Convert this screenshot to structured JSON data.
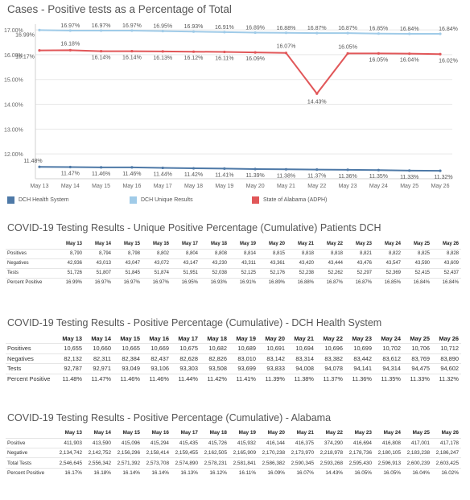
{
  "chart_data": {
    "type": "line",
    "title": "Cases - Positive tests as a Percentage of Total",
    "categories": [
      "May 13",
      "May 14",
      "May 15",
      "May 16",
      "May 17",
      "May 18",
      "May 19",
      "May 20",
      "May 21",
      "May 22",
      "May 23",
      "May 24",
      "May 25",
      "May 26"
    ],
    "y_ticks": [
      "17.00%",
      "16.00%",
      "15.00%",
      "14.00%",
      "13.00%",
      "12.00%"
    ],
    "ylim": [
      11.0,
      17.1
    ],
    "grid": "horizontal",
    "legend_position": "bottom-left",
    "series": [
      {
        "name": "DCH Health System",
        "color": "#4e79a7",
        "values": [
          11.48,
          11.47,
          11.46,
          11.46,
          11.44,
          11.42,
          11.41,
          11.39,
          11.38,
          11.37,
          11.36,
          11.35,
          11.33,
          11.32
        ],
        "labels": [
          "11.48%",
          "11.47%",
          "11.46%",
          "11.46%",
          "11.44%",
          "11.42%",
          "11.41%",
          "11.39%",
          "11.38%",
          "11.37%",
          "11.36%",
          "11.35%",
          "11.33%",
          "11.32%"
        ]
      },
      {
        "name": "DCH Unique Results",
        "color": "#a0cbe8",
        "values": [
          16.99,
          16.97,
          16.97,
          16.97,
          16.95,
          16.93,
          16.91,
          16.89,
          16.88,
          16.87,
          16.87,
          16.85,
          16.84,
          16.84
        ],
        "labels": [
          "16.99%",
          "16.97%",
          "16.97%",
          "16.97%",
          "16.95%",
          "16.93%",
          "16.91%",
          "16.89%",
          "16.88%",
          "16.87%",
          "16.87%",
          "16.85%",
          "16.84%",
          "16.84%"
        ]
      },
      {
        "name": "State of Alabama (ADPH)",
        "color": "#e15759",
        "values": [
          16.17,
          16.18,
          16.14,
          16.14,
          16.13,
          16.12,
          16.11,
          16.09,
          16.07,
          14.43,
          16.05,
          16.05,
          16.04,
          16.02
        ],
        "labels": [
          "16.17%",
          "16.18%",
          "16.14%",
          "16.14%",
          "16.13%",
          "16.12%",
          "16.11%",
          "16.09%",
          "16.07%",
          "14.43%",
          "16.05%",
          "16.05%",
          "16.04%",
          "16.02%"
        ]
      }
    ]
  },
  "tables": [
    {
      "title": "COVID-19 Testing Results - Unique Positive Percentage (Cumulative) Patients DCH",
      "columns": [
        "May 13",
        "May 14",
        "May 15",
        "May 16",
        "May 17",
        "May 18",
        "May 19",
        "May 20",
        "May 21",
        "May 22",
        "May 23",
        "May 24",
        "May 25",
        "May 26"
      ],
      "rows": [
        {
          "label": "Positives",
          "cells": [
            "8,790",
            "8,794",
            "8,798",
            "8,802",
            "8,804",
            "8,808",
            "8,814",
            "8,815",
            "8,818",
            "8,818",
            "8,821",
            "8,822",
            "8,825",
            "8,828"
          ]
        },
        {
          "label": "Negatives",
          "cells": [
            "42,936",
            "43,013",
            "43,047",
            "43,072",
            "43,147",
            "43,230",
            "43,311",
            "43,361",
            "43,420",
            "43,444",
            "43,476",
            "43,547",
            "43,590",
            "43,609"
          ]
        },
        {
          "label": "Tests",
          "cells": [
            "51,726",
            "51,807",
            "51,845",
            "51,874",
            "51,951",
            "52,038",
            "52,125",
            "52,176",
            "52,238",
            "52,262",
            "52,297",
            "52,369",
            "52,415",
            "52,437"
          ]
        },
        {
          "label": "Percent Positive",
          "cells": [
            "16.99%",
            "16.97%",
            "16.97%",
            "16.97%",
            "16.95%",
            "16.93%",
            "16.91%",
            "16.89%",
            "16.88%",
            "16.87%",
            "16.87%",
            "16.85%",
            "16.84%",
            "16.84%"
          ]
        }
      ]
    },
    {
      "title": "COVID-19 Testing Results - Positive Percentage (Cumulative) - DCH Health System",
      "columns": [
        "May 13",
        "May 14",
        "May 15",
        "May 16",
        "May 17",
        "May 18",
        "May 19",
        "May 20",
        "May 21",
        "May 22",
        "May 23",
        "May 24",
        "May 25",
        "May 26"
      ],
      "rows": [
        {
          "label": "Positives",
          "cells": [
            "10,655",
            "10,660",
            "10,665",
            "10,669",
            "10,675",
            "10,682",
            "10,689",
            "10,691",
            "10,694",
            "10,696",
            "10,699",
            "10,702",
            "10,706",
            "10,712"
          ]
        },
        {
          "label": "Negatives",
          "cells": [
            "82,132",
            "82,311",
            "82,384",
            "82,437",
            "82,628",
            "82,826",
            "83,010",
            "83,142",
            "83,314",
            "83,382",
            "83,442",
            "83,612",
            "83,769",
            "83,890"
          ]
        },
        {
          "label": "Tests",
          "cells": [
            "92,787",
            "92,971",
            "93,049",
            "93,106",
            "93,303",
            "93,508",
            "93,699",
            "93,833",
            "94,008",
            "94,078",
            "94,141",
            "94,314",
            "94,475",
            "94,602"
          ]
        },
        {
          "label": "Percent Positive",
          "cells": [
            "11.48%",
            "11.47%",
            "11.46%",
            "11.46%",
            "11.44%",
            "11.42%",
            "11.41%",
            "11.39%",
            "11.38%",
            "11.37%",
            "11.36%",
            "11.35%",
            "11.33%",
            "11.32%"
          ]
        }
      ]
    },
    {
      "title": "COVID-19 Testing Results - Positive Percentage (Cumulative) - Alabama",
      "columns": [
        "May 13",
        "May 14",
        "May 15",
        "May 16",
        "May 17",
        "May 18",
        "May 19",
        "May 20",
        "May 21",
        "May 22",
        "May 23",
        "May 24",
        "May 25",
        "May 26"
      ],
      "rows": [
        {
          "label": "Positive",
          "cells": [
            "411,903",
            "413,590",
            "415,096",
            "415,294",
            "415,435",
            "415,726",
            "415,932",
            "416,144",
            "416,375",
            "374,290",
            "416,694",
            "416,808",
            "417,001",
            "417,178"
          ]
        },
        {
          "label": "Negative",
          "cells": [
            "2,134,742",
            "2,142,752",
            "2,156,296",
            "2,158,414",
            "2,159,455",
            "2,162,505",
            "2,165,909",
            "2,170,238",
            "2,173,970",
            "2,218,978",
            "2,178,736",
            "2,180,105",
            "2,183,238",
            "2,186,247"
          ]
        },
        {
          "label": "Total Tests",
          "cells": [
            "2,546,645",
            "2,556,342",
            "2,571,392",
            "2,573,708",
            "2,574,890",
            "2,578,231",
            "2,581,841",
            "2,586,382",
            "2,590,345",
            "2,593,268",
            "2,595,430",
            "2,596,913",
            "2,600,239",
            "2,603,425"
          ]
        },
        {
          "label": "Percent Positive",
          "cells": [
            "16.17%",
            "16.18%",
            "16.14%",
            "16.14%",
            "16.13%",
            "16.12%",
            "16.11%",
            "16.09%",
            "16.07%",
            "14.43%",
            "16.05%",
            "16.05%",
            "16.04%",
            "16.02%"
          ]
        }
      ]
    }
  ]
}
